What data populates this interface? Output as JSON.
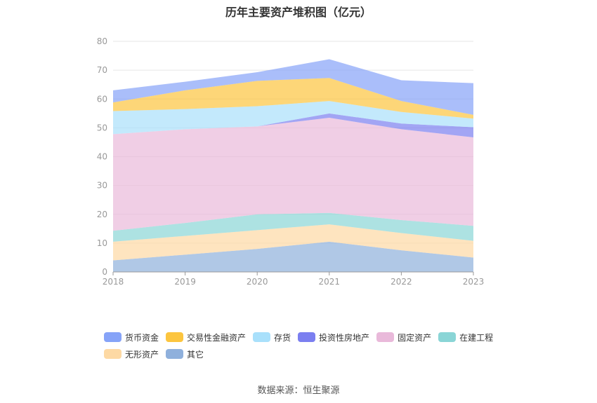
{
  "title": "历年主要资产堆积图（亿元）",
  "source": "数据来源：恒生聚源",
  "chart_data": {
    "type": "area",
    "stacked": true,
    "categories": [
      "2018",
      "2019",
      "2020",
      "2021",
      "2022",
      "2023"
    ],
    "ylim": [
      0,
      80
    ],
    "yticks": [
      0,
      10,
      20,
      30,
      40,
      50,
      60,
      70,
      80
    ],
    "grid": true,
    "legend_position": "bottom",
    "series": [
      {
        "name": "其它",
        "color": "#8fb0dc",
        "values": [
          4.0,
          6.0,
          8.0,
          10.5,
          7.5,
          5.0
        ]
      },
      {
        "name": "无形资产",
        "color": "#fdd9a4",
        "values": [
          6.5,
          6.5,
          6.5,
          6.0,
          6.0,
          5.8
        ]
      },
      {
        "name": "在建工程",
        "color": "#8ad5d6",
        "values": [
          3.8,
          4.5,
          5.5,
          4.0,
          4.5,
          5.2
        ]
      },
      {
        "name": "固定资产",
        "color": "#e9b9da",
        "values": [
          33.5,
          32.5,
          30.5,
          33.0,
          31.5,
          30.7
        ]
      },
      {
        "name": "投资性房地产",
        "color": "#7b7ff0",
        "values": [
          0,
          0,
          0,
          1.5,
          2.0,
          3.5
        ]
      },
      {
        "name": "存货",
        "color": "#a9e0fb",
        "values": [
          8.0,
          7.0,
          7.0,
          4.3,
          4.0,
          3.0
        ]
      },
      {
        "name": "交易性金融资产",
        "color": "#fcc53f",
        "values": [
          3.0,
          6.5,
          8.8,
          8.0,
          3.8,
          1.3
        ]
      },
      {
        "name": "货币资金",
        "color": "#86a3f8",
        "values": [
          4.2,
          3.0,
          3.0,
          6.5,
          7.2,
          11.0
        ]
      }
    ],
    "legend_order": [
      "货币资金",
      "交易性金融资产",
      "存货",
      "投资性房地产",
      "固定资产",
      "在建工程",
      "无形资产",
      "其它"
    ]
  }
}
